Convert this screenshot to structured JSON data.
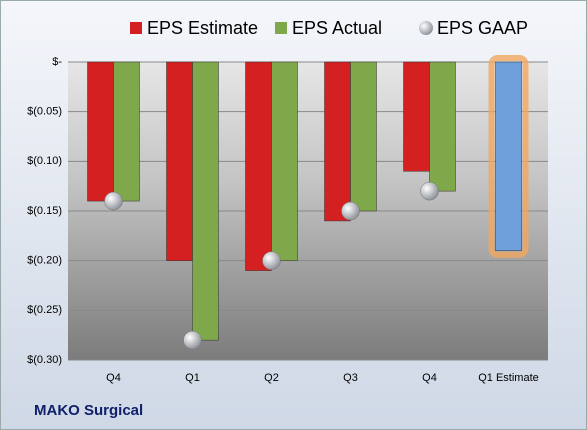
{
  "chart_data": {
    "type": "bar",
    "caption": "MAKO Surgical",
    "categories": [
      "Q4",
      "Q1",
      "Q2",
      "Q3",
      "Q4",
      "Q1 Estimate"
    ],
    "series": [
      {
        "name": "EPS Estimate",
        "color": "#d42020",
        "values": [
          -0.14,
          -0.2,
          -0.21,
          -0.16,
          -0.11,
          -0.19
        ],
        "colors": [
          "#d42020",
          "#d42020",
          "#d42020",
          "#d42020",
          "#d42020",
          "#6fa0dc"
        ]
      },
      {
        "name": "EPS Actual",
        "color": "#7fa84a",
        "values": [
          -0.14,
          -0.28,
          -0.2,
          -0.15,
          -0.13,
          null
        ]
      },
      {
        "name": "EPS GAAP",
        "type": "scatter",
        "color": "#b8bcc4",
        "values": [
          -0.14,
          -0.28,
          -0.2,
          -0.15,
          -0.13,
          null
        ]
      }
    ],
    "ylim": [
      -0.3,
      0
    ],
    "yticks": [
      {
        "value": 0,
        "label": "$-"
      },
      {
        "value": -0.05,
        "label": "$(0.05)"
      },
      {
        "value": -0.1,
        "label": "$(0.10)"
      },
      {
        "value": -0.15,
        "label": "$(0.15)"
      },
      {
        "value": -0.2,
        "label": "$(0.20)"
      },
      {
        "value": -0.25,
        "label": "$(0.25)"
      },
      {
        "value": -0.3,
        "label": "$(0.30)"
      }
    ],
    "grid": true
  }
}
